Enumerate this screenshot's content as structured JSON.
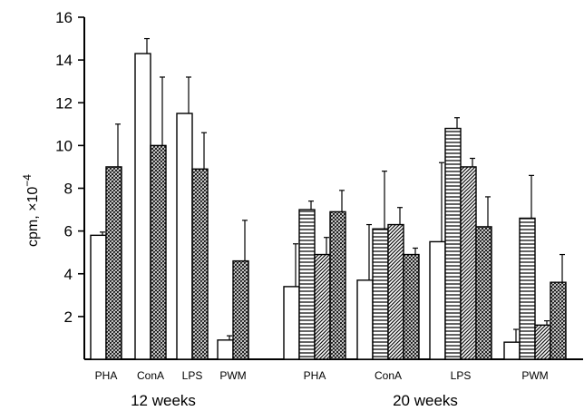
{
  "chart_data": {
    "type": "bar",
    "ylabel": "cpm, ×10",
    "ylabel_exponent": "−4",
    "ylim": [
      0,
      16
    ],
    "yticks": [
      2,
      4,
      6,
      8,
      10,
      12,
      14,
      16
    ],
    "groups": [
      {
        "label": "12 weeks",
        "categories": [
          {
            "label": "PHA",
            "bars": [
              {
                "pattern": "open",
                "value": 5.8,
                "error": 0.15
              },
              {
                "pattern": "cross-hatched",
                "value": 9.0,
                "error": 2.0
              }
            ]
          },
          {
            "label": "ConA",
            "bars": [
              {
                "pattern": "open",
                "value": 14.3,
                "error": 0.7
              },
              {
                "pattern": "cross-hatched",
                "value": 10.0,
                "error": 3.2
              }
            ]
          },
          {
            "label": "LPS",
            "bars": [
              {
                "pattern": "open",
                "value": 11.5,
                "error": 1.7
              },
              {
                "pattern": "cross-hatched",
                "value": 8.9,
                "error": 1.7
              }
            ]
          },
          {
            "label": "PWM",
            "bars": [
              {
                "pattern": "open",
                "value": 0.9,
                "error": 0.2
              },
              {
                "pattern": "cross-hatched",
                "value": 4.6,
                "error": 1.9
              }
            ]
          }
        ]
      },
      {
        "label": "20 weeks",
        "categories": [
          {
            "label": "PHA",
            "bars": [
              {
                "pattern": "open",
                "value": 3.4,
                "error": 2.0
              },
              {
                "pattern": "horizontal-lines",
                "value": 7.0,
                "error": 0.4
              },
              {
                "pattern": "diagonal-lines",
                "value": 4.9,
                "error": 0.8
              },
              {
                "pattern": "cross-hatched",
                "value": 6.9,
                "error": 1.0
              }
            ]
          },
          {
            "label": "ConA",
            "bars": [
              {
                "pattern": "open",
                "value": 3.7,
                "error": 2.6
              },
              {
                "pattern": "horizontal-lines",
                "value": 6.1,
                "error": 2.7
              },
              {
                "pattern": "diagonal-lines",
                "value": 6.3,
                "error": 0.8
              },
              {
                "pattern": "cross-hatched",
                "value": 4.9,
                "error": 0.3
              }
            ]
          },
          {
            "label": "LPS",
            "bars": [
              {
                "pattern": "open",
                "value": 5.5,
                "error": 3.7
              },
              {
                "pattern": "horizontal-lines",
                "value": 10.8,
                "error": 0.5
              },
              {
                "pattern": "diagonal-lines",
                "value": 9.0,
                "error": 0.4
              },
              {
                "pattern": "cross-hatched",
                "value": 6.2,
                "error": 1.4
              }
            ]
          },
          {
            "label": "PWM",
            "bars": [
              {
                "pattern": "open",
                "value": 0.8,
                "error": 0.6
              },
              {
                "pattern": "horizontal-lines",
                "value": 6.6,
                "error": 2.0
              },
              {
                "pattern": "diagonal-lines",
                "value": 1.6,
                "error": 0.2
              },
              {
                "pattern": "cross-hatched",
                "value": 3.6,
                "error": 1.3
              }
            ]
          }
        ]
      }
    ]
  }
}
